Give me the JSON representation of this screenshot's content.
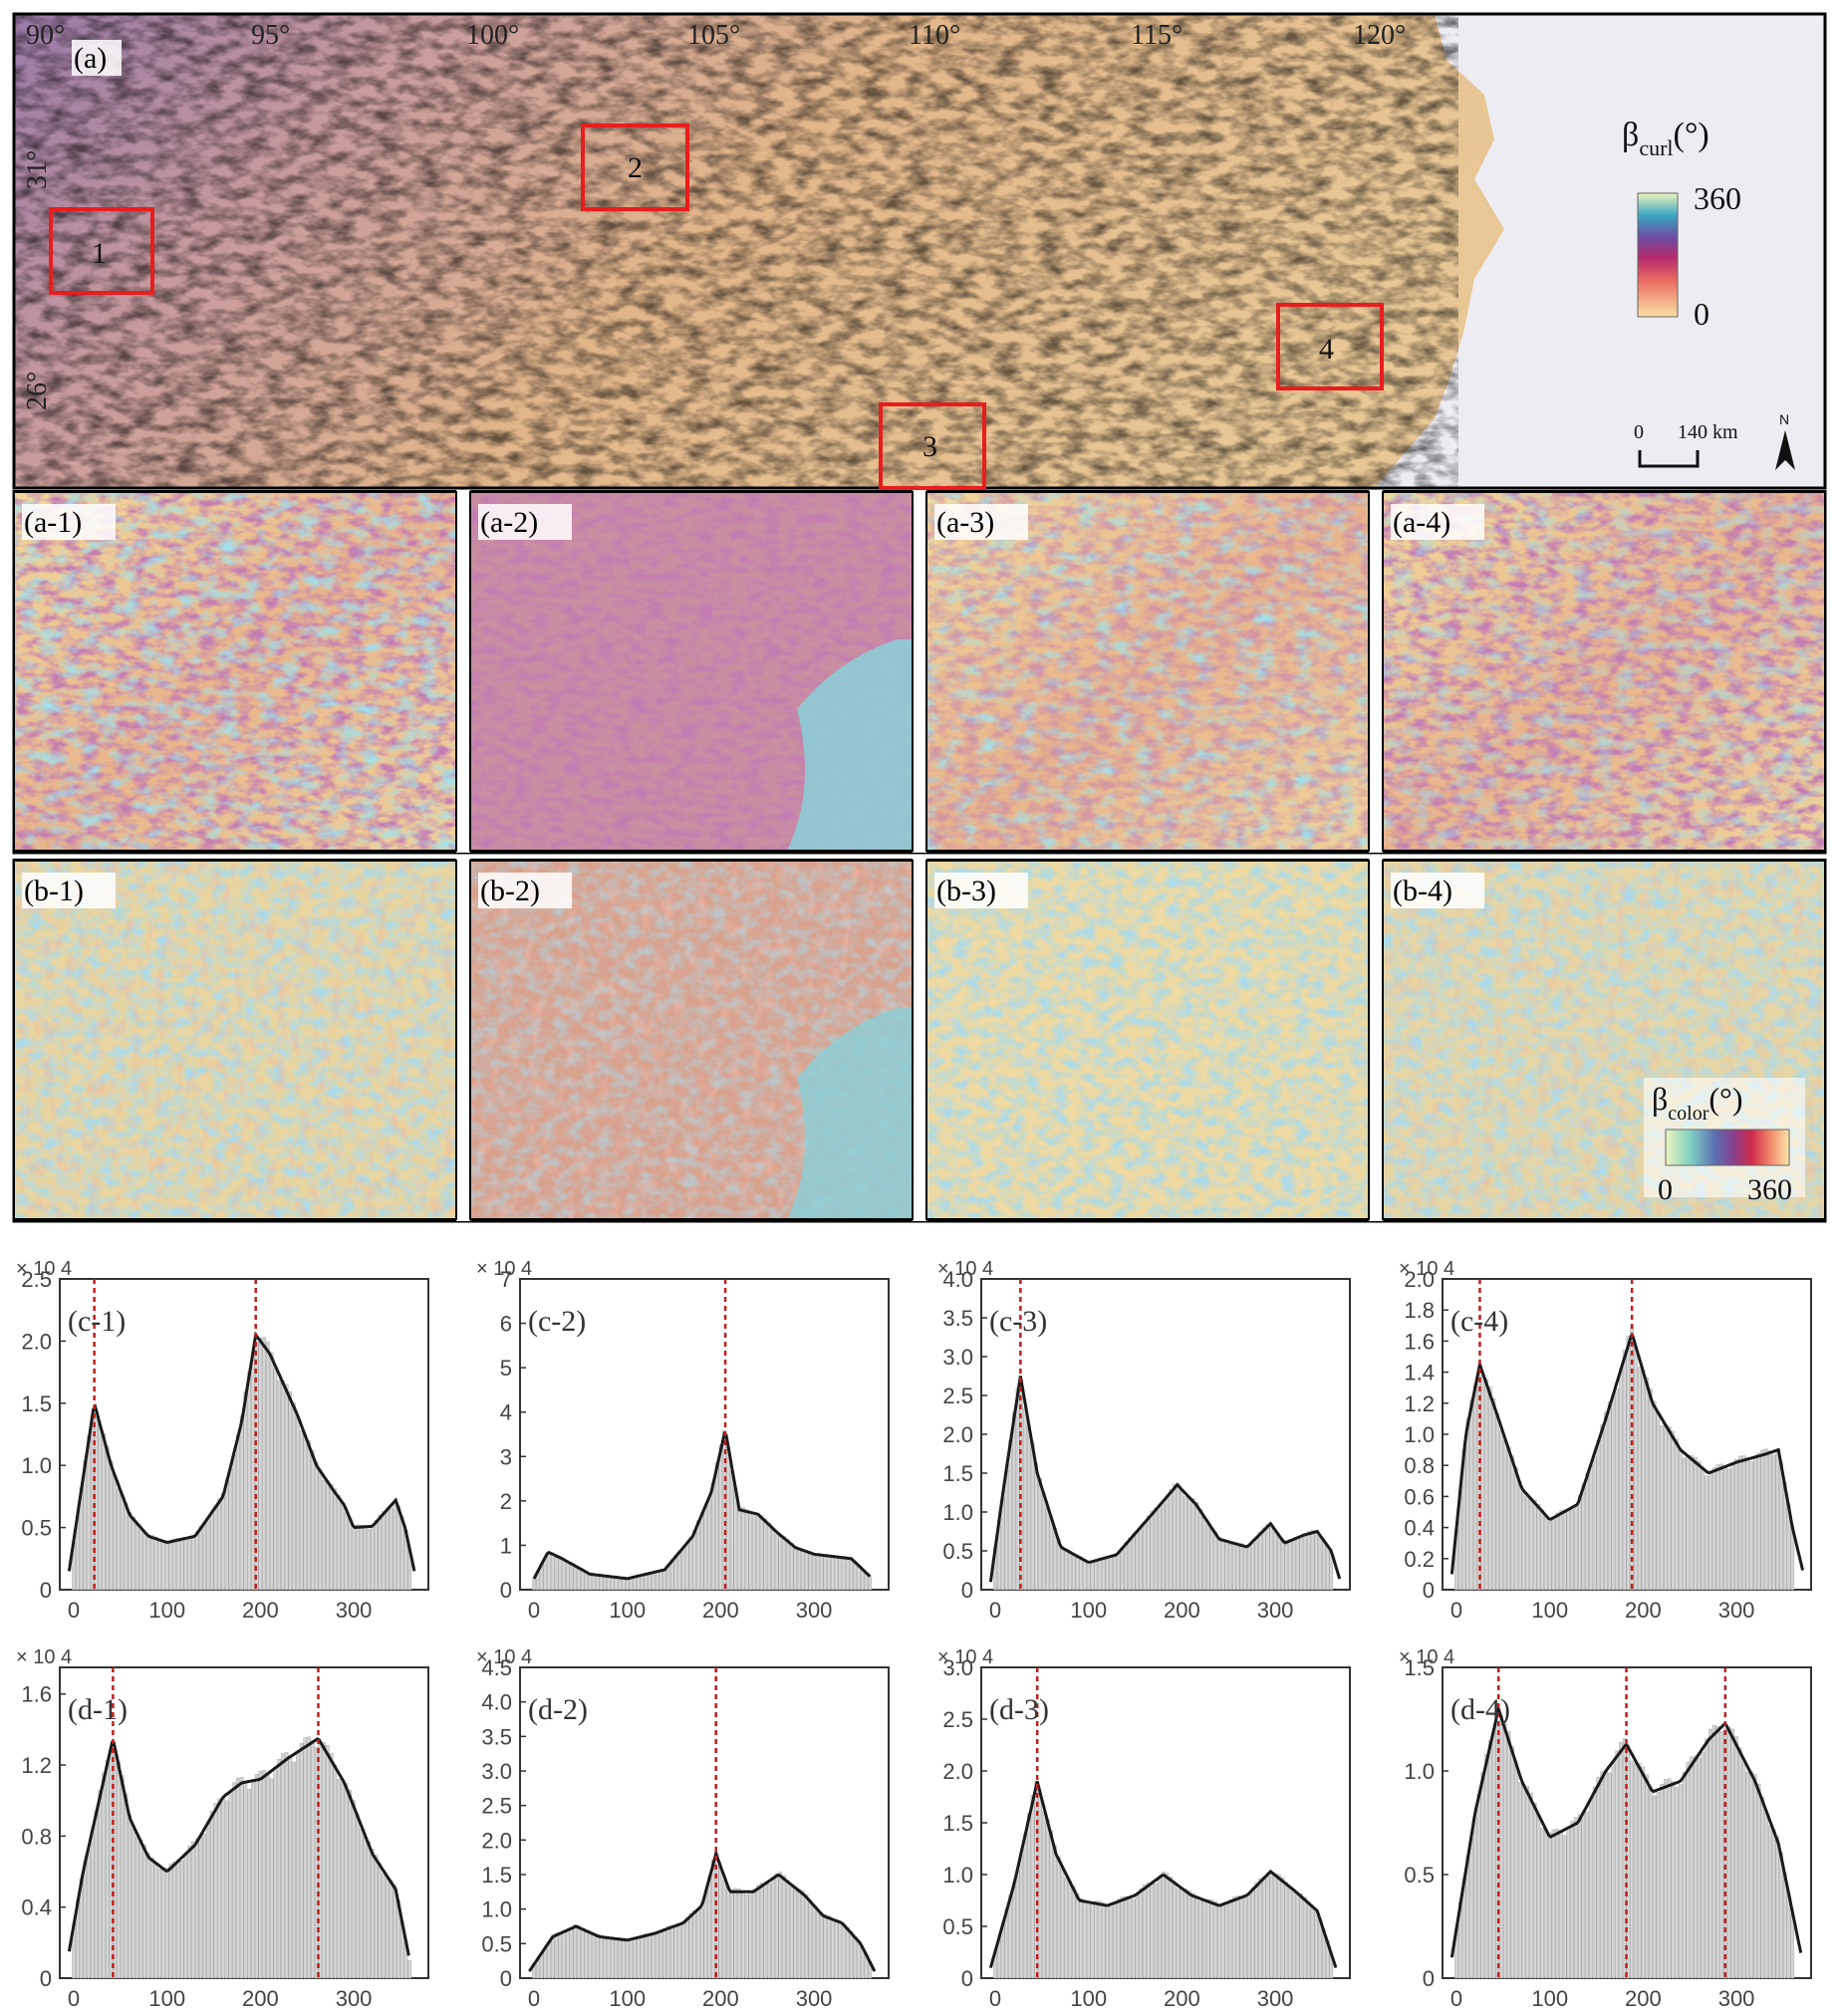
{
  "figure": {
    "top_map": {
      "label": "(a)",
      "lon_ticks": [
        "90°",
        "95°",
        "100°",
        "105°",
        "110°",
        "115°",
        "120°"
      ],
      "lat_ticks": [
        "31°",
        "26°"
      ],
      "boxes": [
        "1",
        "2",
        "3",
        "4"
      ],
      "legend_title_main": "β",
      "legend_title_sub": "curl",
      "legend_title_unit": "(°)",
      "legend_max": "360",
      "legend_min": "0",
      "scale_start": "0",
      "scale_end": "140 km",
      "north": "N",
      "colors": {
        "ramp": [
          "#f7e9a4",
          "#7fd1c4",
          "#5b6fb0",
          "#8a3f8c",
          "#d12c4a",
          "#f7b183",
          "#fbe7a8"
        ],
        "land": "#e7c489",
        "sea": "#ececf2",
        "box": "#e81d1d"
      }
    },
    "panels_a": [
      "(a-1)",
      "(a-2)",
      "(a-3)",
      "(a-4)"
    ],
    "panels_b": [
      "(b-1)",
      "(b-2)",
      "(b-3)",
      "(b-4)"
    ],
    "color_legend": {
      "title_main": "β",
      "title_sub": "color",
      "title_unit": "(°)",
      "min": "0",
      "max": "360"
    }
  },
  "chart_data": [
    {
      "type": "bar",
      "label": "(c-1)",
      "exp": "× 10 4",
      "ylim": [
        0,
        25000
      ],
      "yticks": [
        {
          "v": 0,
          "t": "0"
        },
        {
          "v": 5000,
          "t": "0.5"
        },
        {
          "v": 10000,
          "t": "1.0"
        },
        {
          "v": 15000,
          "t": "1.5"
        },
        {
          "v": 20000,
          "t": "2.0"
        },
        {
          "v": 25000,
          "t": "2.5"
        }
      ],
      "xticks": [
        0,
        100,
        200,
        300
      ],
      "xlim": [
        -15,
        380
      ],
      "peaks": [
        22,
        195
      ],
      "curve": [
        [
          -5,
          1500
        ],
        [
          10,
          9000
        ],
        [
          22,
          15000
        ],
        [
          40,
          10000
        ],
        [
          60,
          6000
        ],
        [
          80,
          4300
        ],
        [
          100,
          3800
        ],
        [
          130,
          4300
        ],
        [
          160,
          7500
        ],
        [
          180,
          13500
        ],
        [
          195,
          20500
        ],
        [
          210,
          19000
        ],
        [
          240,
          14000
        ],
        [
          260,
          10000
        ],
        [
          280,
          7800
        ],
        [
          290,
          6800
        ],
        [
          300,
          5000
        ],
        [
          320,
          5100
        ],
        [
          345,
          7200
        ],
        [
          355,
          5000
        ],
        [
          365,
          1500
        ]
      ]
    },
    {
      "type": "bar",
      "label": "(c-2)",
      "exp": "× 10 4",
      "ylim": [
        0,
        70000
      ],
      "yticks": [
        {
          "v": 0,
          "t": "0"
        },
        {
          "v": 10000,
          "t": "1"
        },
        {
          "v": 20000,
          "t": "2"
        },
        {
          "v": 30000,
          "t": "3"
        },
        {
          "v": 40000,
          "t": "4"
        },
        {
          "v": 50000,
          "t": "5"
        },
        {
          "v": 60000,
          "t": "6"
        },
        {
          "v": 70000,
          "t": "7"
        }
      ],
      "xticks": [
        0,
        100,
        200,
        300
      ],
      "xlim": [
        -15,
        380
      ],
      "peaks": [
        205
      ],
      "curve": [
        [
          0,
          2500
        ],
        [
          15,
          8500
        ],
        [
          30,
          7000
        ],
        [
          60,
          3500
        ],
        [
          100,
          2500
        ],
        [
          140,
          4500
        ],
        [
          170,
          12000
        ],
        [
          190,
          22000
        ],
        [
          205,
          36000
        ],
        [
          220,
          18000
        ],
        [
          240,
          17000
        ],
        [
          260,
          13000
        ],
        [
          280,
          9500
        ],
        [
          300,
          8000
        ],
        [
          340,
          7000
        ],
        [
          360,
          3000
        ]
      ]
    },
    {
      "type": "bar",
      "label": "(c-3)",
      "exp": "× 10 4",
      "ylim": [
        0,
        40000
      ],
      "yticks": [
        {
          "v": 0,
          "t": "0"
        },
        {
          "v": 5000,
          "t": "0.5"
        },
        {
          "v": 10000,
          "t": "1.0"
        },
        {
          "v": 15000,
          "t": "1.5"
        },
        {
          "v": 20000,
          "t": "2.0"
        },
        {
          "v": 25000,
          "t": "2.5"
        },
        {
          "v": 30000,
          "t": "3.0"
        },
        {
          "v": 35000,
          "t": "3.5"
        },
        {
          "v": 40000,
          "t": "4.0"
        }
      ],
      "xticks": [
        0,
        100,
        200,
        300
      ],
      "xlim": [
        -15,
        380
      ],
      "peaks": [
        27
      ],
      "curve": [
        [
          -5,
          1000
        ],
        [
          10,
          14000
        ],
        [
          27,
          27500
        ],
        [
          45,
          15000
        ],
        [
          70,
          5500
        ],
        [
          100,
          3500
        ],
        [
          130,
          4500
        ],
        [
          170,
          10000
        ],
        [
          195,
          13500
        ],
        [
          215,
          11000
        ],
        [
          240,
          6500
        ],
        [
          270,
          5500
        ],
        [
          295,
          8500
        ],
        [
          310,
          6000
        ],
        [
          330,
          7000
        ],
        [
          345,
          7500
        ],
        [
          360,
          5000
        ],
        [
          370,
          1000
        ]
      ]
    },
    {
      "type": "bar",
      "label": "(c-4)",
      "exp": "× 10 4",
      "ylim": [
        0,
        20000
      ],
      "yticks": [
        {
          "v": 0,
          "t": "0"
        },
        {
          "v": 2000,
          "t": "0.2"
        },
        {
          "v": 4000,
          "t": "0.4"
        },
        {
          "v": 6000,
          "t": "0.6"
        },
        {
          "v": 8000,
          "t": "0.8"
        },
        {
          "v": 10000,
          "t": "1.0"
        },
        {
          "v": 12000,
          "t": "1.2"
        },
        {
          "v": 14000,
          "t": "1.4"
        },
        {
          "v": 16000,
          "t": "1.6"
        },
        {
          "v": 18000,
          "t": "1.8"
        },
        {
          "v": 20000,
          "t": "2.0"
        }
      ],
      "xticks": [
        0,
        100,
        200,
        300
      ],
      "xlim": [
        -15,
        380
      ],
      "peaks": [
        25,
        188
      ],
      "curve": [
        [
          -5,
          1000
        ],
        [
          10,
          10000
        ],
        [
          25,
          14500
        ],
        [
          45,
          11000
        ],
        [
          70,
          6500
        ],
        [
          100,
          4500
        ],
        [
          130,
          5500
        ],
        [
          160,
          11000
        ],
        [
          188,
          16500
        ],
        [
          210,
          12000
        ],
        [
          240,
          9000
        ],
        [
          270,
          7500
        ],
        [
          300,
          8200
        ],
        [
          330,
          8700
        ],
        [
          345,
          9000
        ],
        [
          360,
          4000
        ],
        [
          372,
          1000
        ]
      ]
    },
    {
      "type": "bar",
      "label": "(d-1)",
      "exp": "× 10 4",
      "ylim": [
        0,
        17500
      ],
      "yticks": [
        {
          "v": 0,
          "t": "0"
        },
        {
          "v": 4000,
          "t": "0.4"
        },
        {
          "v": 8000,
          "t": "0.8"
        },
        {
          "v": 12000,
          "t": "1.2"
        },
        {
          "v": 16000,
          "t": "1.6"
        }
      ],
      "xticks": [
        0,
        100,
        200,
        300
      ],
      "xlim": [
        -15,
        380
      ],
      "peaks": [
        42,
        262
      ],
      "curve": [
        [
          -5,
          1500
        ],
        [
          10,
          6000
        ],
        [
          25,
          9500
        ],
        [
          42,
          13500
        ],
        [
          60,
          9000
        ],
        [
          80,
          6800
        ],
        [
          100,
          6000
        ],
        [
          130,
          7500
        ],
        [
          160,
          10200
        ],
        [
          180,
          11000
        ],
        [
          200,
          11200
        ],
        [
          230,
          12400
        ],
        [
          262,
          13500
        ],
        [
          290,
          11000
        ],
        [
          320,
          7000
        ],
        [
          345,
          5000
        ],
        [
          360,
          1000
        ]
      ]
    },
    {
      "type": "bar",
      "label": "(d-2)",
      "exp": "× 10 4",
      "ylim": [
        0,
        45000
      ],
      "yticks": [
        {
          "v": 0,
          "t": "0"
        },
        {
          "v": 5000,
          "t": "0.5"
        },
        {
          "v": 10000,
          "t": "1.0"
        },
        {
          "v": 15000,
          "t": "1.5"
        },
        {
          "v": 20000,
          "t": "2.0"
        },
        {
          "v": 25000,
          "t": "2.5"
        },
        {
          "v": 30000,
          "t": "3.0"
        },
        {
          "v": 35000,
          "t": "3.5"
        },
        {
          "v": 40000,
          "t": "4.0"
        },
        {
          "v": 45000,
          "t": "4.5"
        }
      ],
      "xticks": [
        0,
        100,
        200,
        300
      ],
      "xlim": [
        -15,
        380
      ],
      "peaks": [
        195
      ],
      "curve": [
        [
          -5,
          1000
        ],
        [
          20,
          6000
        ],
        [
          45,
          7500
        ],
        [
          70,
          6000
        ],
        [
          100,
          5500
        ],
        [
          130,
          6500
        ],
        [
          160,
          8000
        ],
        [
          180,
          10500
        ],
        [
          195,
          18000
        ],
        [
          210,
          12500
        ],
        [
          235,
          12500
        ],
        [
          262,
          15000
        ],
        [
          290,
          12000
        ],
        [
          310,
          9000
        ],
        [
          330,
          8000
        ],
        [
          350,
          5000
        ],
        [
          365,
          1000
        ]
      ]
    },
    {
      "type": "bar",
      "label": "(d-3)",
      "exp": "× 10 4",
      "ylim": [
        0,
        30000
      ],
      "yticks": [
        {
          "v": 0,
          "t": "0"
        },
        {
          "v": 5000,
          "t": "0.5"
        },
        {
          "v": 10000,
          "t": "1.0"
        },
        {
          "v": 15000,
          "t": "1.5"
        },
        {
          "v": 20000,
          "t": "2.0"
        },
        {
          "v": 25000,
          "t": "2.5"
        },
        {
          "v": 30000,
          "t": "3.0"
        }
      ],
      "xticks": [
        0,
        100,
        200,
        300
      ],
      "xlim": [
        -15,
        380
      ],
      "peaks": [
        45
      ],
      "curve": [
        [
          -5,
          1000
        ],
        [
          20,
          9000
        ],
        [
          45,
          19000
        ],
        [
          65,
          12000
        ],
        [
          90,
          7500
        ],
        [
          120,
          7000
        ],
        [
          150,
          8000
        ],
        [
          180,
          10000
        ],
        [
          210,
          8000
        ],
        [
          240,
          7000
        ],
        [
          270,
          8000
        ],
        [
          295,
          10300
        ],
        [
          320,
          8500
        ],
        [
          345,
          6500
        ],
        [
          365,
          1000
        ]
      ]
    },
    {
      "type": "bar",
      "label": "(d-4)",
      "exp": "× 10 4",
      "ylim": [
        0,
        15000
      ],
      "yticks": [
        {
          "v": 0,
          "t": "0"
        },
        {
          "v": 5000,
          "t": "0.5"
        },
        {
          "v": 10000,
          "t": "1.0"
        },
        {
          "v": 15000,
          "t": "1.5"
        }
      ],
      "xticks": [
        0,
        100,
        200,
        300
      ],
      "xlim": [
        -15,
        380
      ],
      "peaks": [
        45,
        182,
        288
      ],
      "curve": [
        [
          -5,
          1000
        ],
        [
          20,
          8000
        ],
        [
          45,
          13000
        ],
        [
          70,
          9500
        ],
        [
          100,
          6800
        ],
        [
          130,
          7500
        ],
        [
          160,
          10000
        ],
        [
          182,
          11300
        ],
        [
          210,
          9000
        ],
        [
          240,
          9500
        ],
        [
          270,
          11500
        ],
        [
          288,
          12300
        ],
        [
          320,
          9500
        ],
        [
          345,
          6500
        ],
        [
          370,
          1000
        ]
      ]
    }
  ]
}
